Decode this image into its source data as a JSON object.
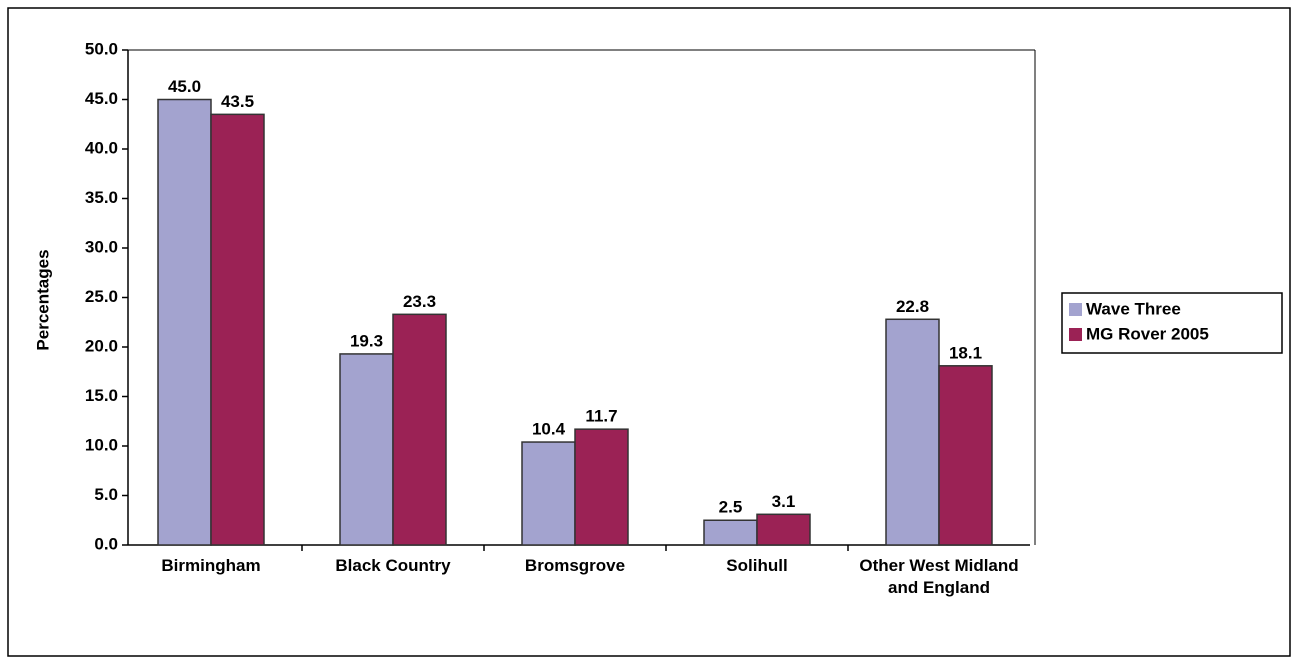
{
  "chart_data": {
    "type": "bar",
    "y_label": "Percentages",
    "categories": [
      "Birmingham",
      "Black Country",
      "Bromsgrove",
      "Solihull",
      "Other West Midland and England"
    ],
    "series": [
      {
        "name": "Wave Three",
        "color": "#a3a3cf",
        "values": [
          45.0,
          19.3,
          10.4,
          2.5,
          22.8
        ],
        "value_labels": [
          "45.0",
          "19.3",
          "10.4",
          "2.5",
          "22.8"
        ]
      },
      {
        "name": "MG Rover 2005",
        "color": "#9b2255",
        "values": [
          43.5,
          23.3,
          11.7,
          3.1,
          18.1
        ],
        "value_labels": [
          "43.5",
          "23.3",
          "11.7",
          "3.1",
          "18.1"
        ]
      }
    ],
    "ylim": [
      0,
      50
    ],
    "yticks": [
      {
        "value": 0,
        "label": "0.0"
      },
      {
        "value": 5,
        "label": "5.0"
      },
      {
        "value": 10,
        "label": "10.0"
      },
      {
        "value": 15,
        "label": "15.0"
      },
      {
        "value": 20,
        "label": "20.0"
      },
      {
        "value": 25,
        "label": "25.0"
      },
      {
        "value": 30,
        "label": "30.0"
      },
      {
        "value": 35,
        "label": "35.0"
      },
      {
        "value": 40,
        "label": "40.0"
      },
      {
        "value": 45,
        "label": "45.0"
      },
      {
        "value": 50,
        "label": "50.0"
      }
    ],
    "grid": false,
    "legend": "right"
  }
}
